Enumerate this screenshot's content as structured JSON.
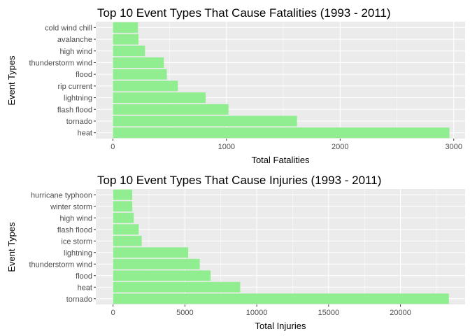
{
  "chart_data": [
    {
      "type": "bar",
      "orientation": "horizontal",
      "title": "Top 10 Event Types That Cause Fatalities (1993 - 2011)",
      "xlabel": "Total Fatalities",
      "ylabel": "Event Types",
      "categories": [
        "cold wind chill",
        "avalanche",
        "high wind",
        "thunderstorm wind",
        "flood",
        "rip current",
        "lightning",
        "flash flood",
        "tornado",
        "heat"
      ],
      "values": [
        221,
        225,
        283,
        449,
        475,
        572,
        817,
        1018,
        1621,
        2962
      ],
      "xlim": [
        -150,
        3100
      ],
      "xticks": [
        0,
        1000,
        2000,
        3000
      ],
      "bar_color": "#90ee90",
      "grid": true,
      "legend": "none"
    },
    {
      "type": "bar",
      "orientation": "horizontal",
      "title": "Top 10 Event Types That Cause Injuries (1993 - 2011)",
      "xlabel": "Total Injuries",
      "ylabel": "Event Types",
      "categories": [
        "hurricane typhoon",
        "winter storm",
        "high wind",
        "flash flood",
        "ice storm",
        "lightning",
        "thunderstorm wind",
        "flood",
        "heat",
        "tornado"
      ],
      "values": [
        1333,
        1338,
        1440,
        1785,
        1992,
        5231,
        6033,
        6791,
        8849,
        23371
      ],
      "xlim": [
        -1200,
        24500
      ],
      "xticks": [
        0,
        5000,
        10000,
        15000,
        20000
      ],
      "bar_color": "#90ee90",
      "grid": true,
      "legend": "none"
    }
  ]
}
